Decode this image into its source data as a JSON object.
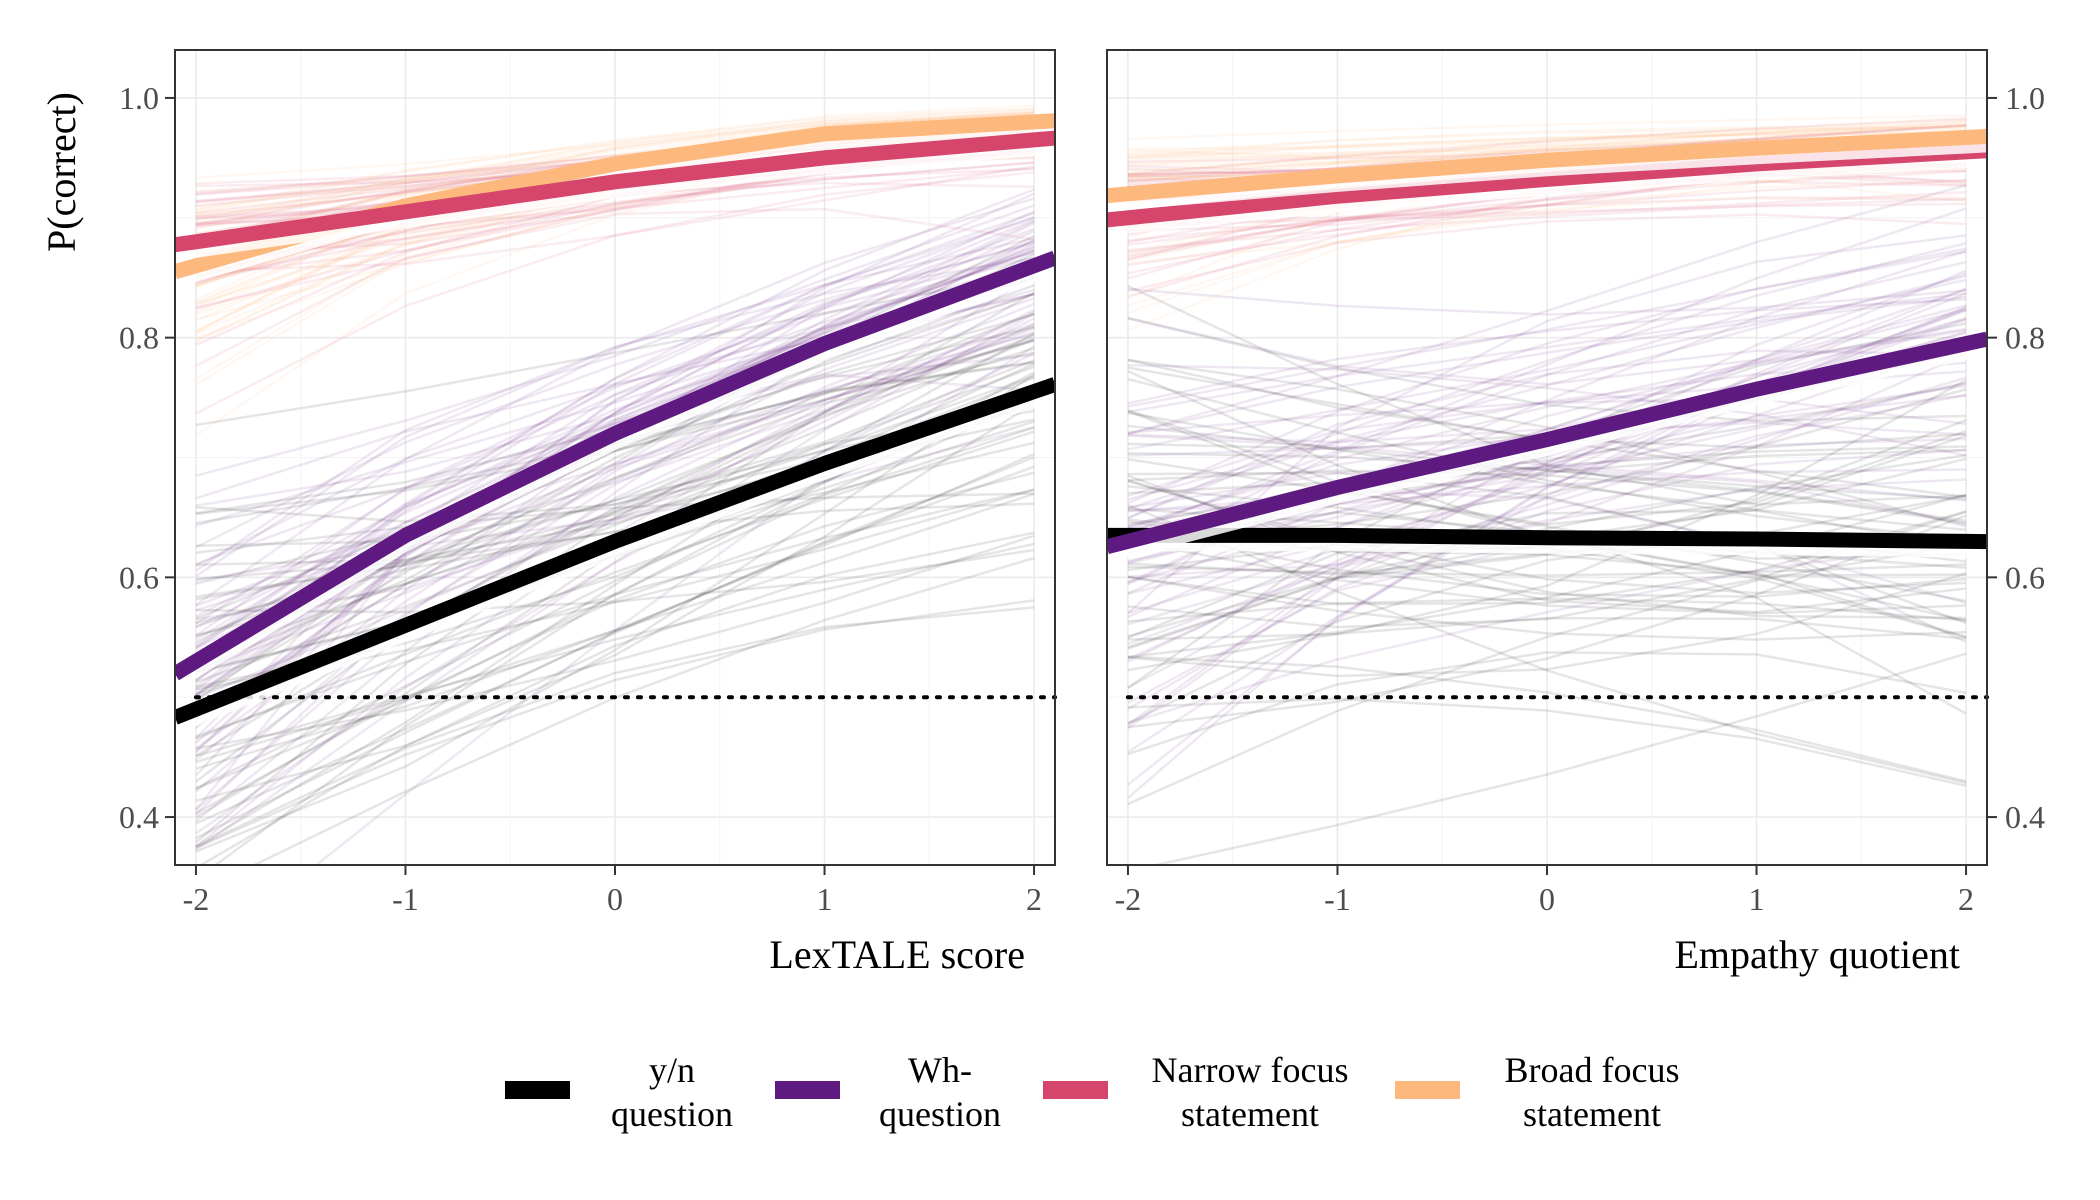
{
  "chart_data": {
    "type": "line",
    "ylabel": "P(correct)",
    "ylim": [
      0.36,
      1.04
    ],
    "yticks": [
      0.4,
      0.6,
      0.8,
      1.0
    ],
    "ytick_labels": [
      "0.4",
      "0.6",
      "0.8",
      "1.0"
    ],
    "xlim": [
      -2.1,
      2.1
    ],
    "xticks": [
      -2,
      -1,
      0,
      1,
      2
    ],
    "xtick_labels": [
      "-2",
      "-1",
      "0",
      "1",
      "2"
    ],
    "chance_line": 0.5,
    "grid": true,
    "legend_position": "bottom",
    "series_meta": [
      {
        "key": "yn",
        "legend_line1": "y/n",
        "legend_line2": "question",
        "color": "#000000"
      },
      {
        "key": "wh",
        "legend_line1": "Wh-",
        "legend_line2": "question",
        "color": "#5e1a80"
      },
      {
        "key": "nf",
        "legend_line1": "Narrow focus",
        "legend_line2": "statement",
        "color": "#d6456b"
      },
      {
        "key": "bf",
        "legend_line1": "Broad focus",
        "legend_line2": "statement",
        "color": "#fdb97d"
      }
    ],
    "panels": [
      {
        "xlabel": "LexTALE score",
        "y_axis_side": "left",
        "x": [
          -2,
          -1,
          0,
          1,
          2
        ],
        "series": [
          {
            "key": "yn",
            "values": [
              0.49,
              0.56,
              0.63,
              0.695,
              0.755
            ]
          },
          {
            "key": "wh",
            "values": [
              0.53,
              0.635,
              0.72,
              0.795,
              0.86
            ]
          },
          {
            "key": "nf",
            "values": [
              0.88,
              0.905,
              0.93,
              0.95,
              0.965
            ]
          },
          {
            "key": "bf",
            "values": [
              0.86,
              0.91,
              0.945,
              0.97,
              0.98
            ]
          }
        ]
      },
      {
        "xlabel": "Empathy quotient",
        "y_axis_side": "right",
        "x": [
          -2,
          -1,
          0,
          1,
          2
        ],
        "series": [
          {
            "key": "yn",
            "values": [
              0.635,
              0.635,
              0.633,
              0.632,
              0.63
            ]
          },
          {
            "key": "wh",
            "values": [
              0.63,
              0.675,
              0.715,
              0.757,
              0.795
            ]
          },
          {
            "key": "nf",
            "values": [
              0.9,
              0.918,
              0.932,
              0.945,
              0.955
            ]
          },
          {
            "key": "bf",
            "values": [
              0.92,
              0.935,
              0.948,
              0.958,
              0.967
            ]
          }
        ]
      }
    ]
  }
}
